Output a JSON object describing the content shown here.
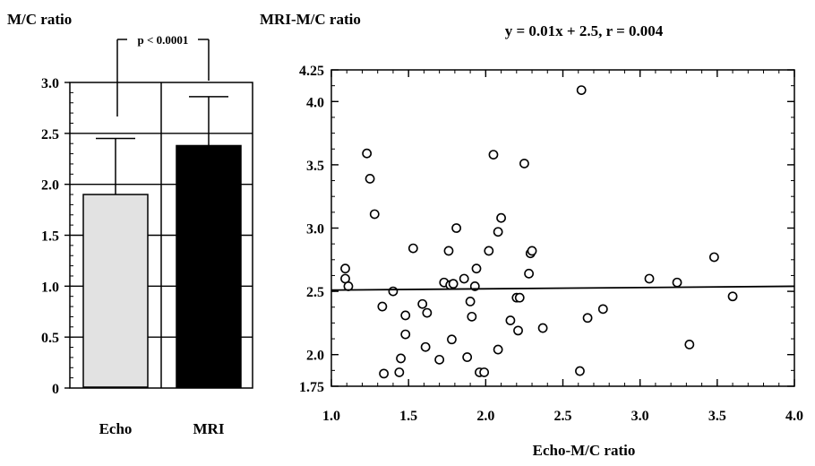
{
  "chart_data": [
    {
      "type": "bar",
      "ylabel": "M/C ratio",
      "categories": [
        "Echo",
        "MRI"
      ],
      "values": [
        1.9,
        2.38
      ],
      "error_upper": [
        2.45,
        2.86
      ],
      "ylim": [
        0,
        3.0
      ],
      "yticks": [
        "0",
        "0.5",
        "1.0",
        "1.5",
        "2.0",
        "2.5",
        "3.0"
      ],
      "annotation": "p < 0.0001",
      "colors": [
        "#e2e2e2",
        "#000000"
      ],
      "grid": true
    },
    {
      "type": "scatter",
      "ylabel": "MRI-M/C ratio",
      "xlabel": "Echo-M/C ratio",
      "title": "y =  0.01x + 2.5,  r = 0.004",
      "xlim": [
        1.0,
        4.0
      ],
      "ylim": [
        1.75,
        4.25
      ],
      "xticks": [
        "1.0",
        "1.5",
        "2.0",
        "2.5",
        "3.0",
        "3.5",
        "4.0"
      ],
      "yticks": [
        "1.75",
        "2.0",
        "2.5",
        "3.0",
        "3.5",
        "4.0",
        "4.25"
      ],
      "regression": {
        "slope": 0.01,
        "intercept": 2.5
      },
      "points": [
        [
          1.09,
          2.68
        ],
        [
          1.09,
          2.6
        ],
        [
          1.11,
          2.54
        ],
        [
          1.23,
          3.59
        ],
        [
          1.25,
          3.39
        ],
        [
          1.28,
          3.11
        ],
        [
          1.33,
          2.38
        ],
        [
          1.34,
          1.85
        ],
        [
          1.4,
          2.5
        ],
        [
          1.44,
          1.86
        ],
        [
          1.45,
          1.97
        ],
        [
          1.48,
          2.16
        ],
        [
          1.48,
          2.31
        ],
        [
          1.53,
          2.84
        ],
        [
          1.59,
          2.4
        ],
        [
          1.61,
          2.06
        ],
        [
          1.62,
          2.33
        ],
        [
          1.7,
          1.96
        ],
        [
          1.73,
          2.57
        ],
        [
          1.76,
          2.82
        ],
        [
          1.77,
          2.55
        ],
        [
          1.78,
          2.12
        ],
        [
          1.79,
          2.56
        ],
        [
          1.81,
          3.0
        ],
        [
          1.86,
          2.6
        ],
        [
          1.88,
          1.98
        ],
        [
          1.9,
          2.42
        ],
        [
          1.91,
          2.3
        ],
        [
          1.93,
          2.54
        ],
        [
          1.94,
          2.68
        ],
        [
          1.96,
          1.86
        ],
        [
          1.99,
          1.86
        ],
        [
          2.02,
          2.82
        ],
        [
          2.05,
          3.58
        ],
        [
          2.08,
          2.04
        ],
        [
          2.08,
          2.97
        ],
        [
          2.1,
          3.08
        ],
        [
          2.16,
          2.27
        ],
        [
          2.2,
          2.45
        ],
        [
          2.21,
          2.19
        ],
        [
          2.22,
          2.45
        ],
        [
          2.25,
          3.51
        ],
        [
          2.28,
          2.64
        ],
        [
          2.29,
          2.8
        ],
        [
          2.3,
          2.82
        ],
        [
          2.37,
          2.21
        ],
        [
          2.61,
          1.87
        ],
        [
          2.62,
          4.09
        ],
        [
          2.66,
          2.29
        ],
        [
          2.76,
          2.36
        ],
        [
          3.06,
          2.6
        ],
        [
          3.24,
          2.57
        ],
        [
          3.32,
          2.08
        ],
        [
          3.48,
          2.77
        ],
        [
          3.6,
          2.46
        ]
      ]
    }
  ]
}
